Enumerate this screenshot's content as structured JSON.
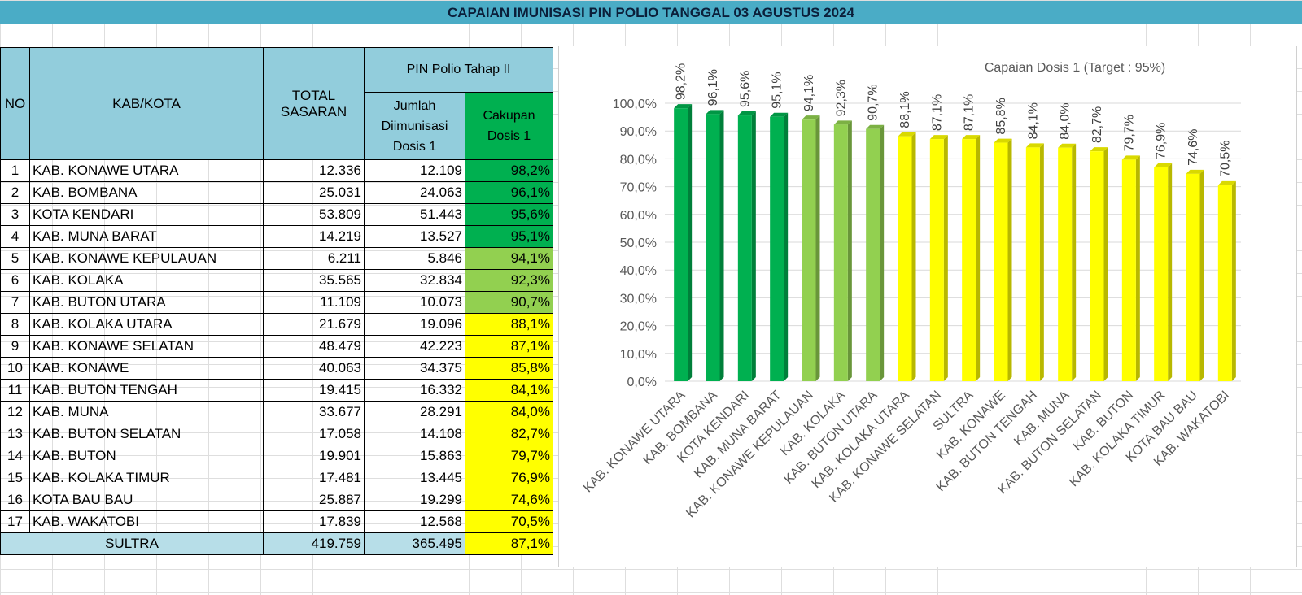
{
  "title": "CAPAIAN IMUNISASI PIN POLIO TANGGAL 03 AGUSTUS 2024",
  "table": {
    "headers": {
      "no": "NO",
      "kab": "KAB/KOTA",
      "total": [
        "TOTAL",
        "SASARAN"
      ],
      "pin": "PIN Polio Tahap II",
      "jumlah": [
        "Jumlah",
        "Diimunisasi",
        "Dosis 1"
      ],
      "cakupan": [
        "Cakupan",
        "Dosis 1"
      ]
    },
    "rows": [
      {
        "no": "1",
        "name": "KAB. KONAWE UTARA",
        "total": "12.336",
        "dosis": "12.109",
        "pct": "98,2%",
        "color": "#00b050"
      },
      {
        "no": "2",
        "name": "KAB. BOMBANA",
        "total": "25.031",
        "dosis": "24.063",
        "pct": "96,1%",
        "color": "#00b050"
      },
      {
        "no": "3",
        "name": "KOTA KENDARI",
        "total": "53.809",
        "dosis": "51.443",
        "pct": "95,6%",
        "color": "#00b050"
      },
      {
        "no": "4",
        "name": "KAB. MUNA BARAT",
        "total": "14.219",
        "dosis": "13.527",
        "pct": "95,1%",
        "color": "#00b050"
      },
      {
        "no": "5",
        "name": "KAB. KONAWE KEPULAUAN",
        "total": "6.211",
        "dosis": "5.846",
        "pct": "94,1%",
        "color": "#92d050"
      },
      {
        "no": "6",
        "name": "KAB. KOLAKA",
        "total": "35.565",
        "dosis": "32.834",
        "pct": "92,3%",
        "color": "#92d050"
      },
      {
        "no": "7",
        "name": "KAB. BUTON UTARA",
        "total": "11.109",
        "dosis": "10.073",
        "pct": "90,7%",
        "color": "#92d050"
      },
      {
        "no": "8",
        "name": "KAB. KOLAKA UTARA",
        "total": "21.679",
        "dosis": "19.096",
        "pct": "88,1%",
        "color": "#ffff00"
      },
      {
        "no": "9",
        "name": "KAB. KONAWE SELATAN",
        "total": "48.479",
        "dosis": "42.223",
        "pct": "87,1%",
        "color": "#ffff00"
      },
      {
        "no": "10",
        "name": "KAB. KONAWE",
        "total": "40.063",
        "dosis": "34.375",
        "pct": "85,8%",
        "color": "#ffff00"
      },
      {
        "no": "11",
        "name": "KAB. BUTON TENGAH",
        "total": "19.415",
        "dosis": "16.332",
        "pct": "84,1%",
        "color": "#ffff00"
      },
      {
        "no": "12",
        "name": "KAB. MUNA",
        "total": "33.677",
        "dosis": "28.291",
        "pct": "84,0%",
        "color": "#ffff00"
      },
      {
        "no": "13",
        "name": "KAB. BUTON SELATAN",
        "total": "17.058",
        "dosis": "14.108",
        "pct": "82,7%",
        "color": "#ffff00"
      },
      {
        "no": "14",
        "name": "KAB. BUTON",
        "total": "19.901",
        "dosis": "15.863",
        "pct": "79,7%",
        "color": "#ffff00"
      },
      {
        "no": "15",
        "name": "KAB. KOLAKA TIMUR",
        "total": "17.481",
        "dosis": "13.445",
        "pct": "76,9%",
        "color": "#ffff00"
      },
      {
        "no": "16",
        "name": "KOTA BAU BAU",
        "total": "25.887",
        "dosis": "19.299",
        "pct": "74,6%",
        "color": "#ffff00"
      },
      {
        "no": "17",
        "name": "KAB. WAKATOBI",
        "total": "17.839",
        "dosis": "12.568",
        "pct": "70,5%",
        "color": "#ffff00"
      }
    ],
    "total_row": {
      "name": "SULTRA",
      "total": "419.759",
      "dosis": "365.495",
      "pct": "87,1%"
    }
  },
  "chart_data": {
    "type": "bar",
    "title": "Capaian Dosis 1 (Target : 95%)",
    "categories": [
      "KAB. KONAWE UTARA",
      "KAB. BOMBANA",
      "KOTA KENDARI",
      "KAB. MUNA BARAT",
      "KAB. KONAWE KEPULAUAN",
      "KAB. KOLAKA",
      "KAB. BUTON UTARA",
      "KAB. KOLAKA UTARA",
      "KAB. KONAWE SELATAN",
      "SULTRA",
      "KAB. KONAWE",
      "KAB. BUTON TENGAH",
      "KAB. MUNA",
      "KAB. BUTON SELATAN",
      "KAB. BUTON",
      "KAB. KOLAKA TIMUR",
      "KOTA BAU BAU",
      "KAB. WAKATOBI"
    ],
    "values": [
      98.2,
      96.1,
      95.6,
      95.1,
      94.1,
      92.3,
      90.7,
      88.1,
      87.1,
      87.1,
      85.8,
      84.1,
      84.0,
      82.7,
      79.7,
      76.9,
      74.6,
      70.5
    ],
    "labels": [
      "98,2%",
      "96,1%",
      "95,6%",
      "95,1%",
      "94,1%",
      "92,3%",
      "90,7%",
      "88,1%",
      "87,1%",
      "87,1%",
      "85,8%",
      "84,1%",
      "84,0%",
      "82,7%",
      "79,7%",
      "76,9%",
      "74,6%",
      "70,5%"
    ],
    "colors": [
      "#00b050",
      "#00b050",
      "#00b050",
      "#00b050",
      "#92d050",
      "#92d050",
      "#92d050",
      "#ffff00",
      "#ffff00",
      "#ffff00",
      "#ffff00",
      "#ffff00",
      "#ffff00",
      "#ffff00",
      "#ffff00",
      "#ffff00",
      "#ffff00",
      "#ffff00"
    ],
    "ylim": [
      0,
      100
    ],
    "yticks": [
      "0,0%",
      "10,0%",
      "20,0%",
      "30,0%",
      "40,0%",
      "50,0%",
      "60,0%",
      "70,0%",
      "80,0%",
      "90,0%",
      "100,0%"
    ],
    "grid": true,
    "xlabel": "",
    "ylabel": ""
  }
}
